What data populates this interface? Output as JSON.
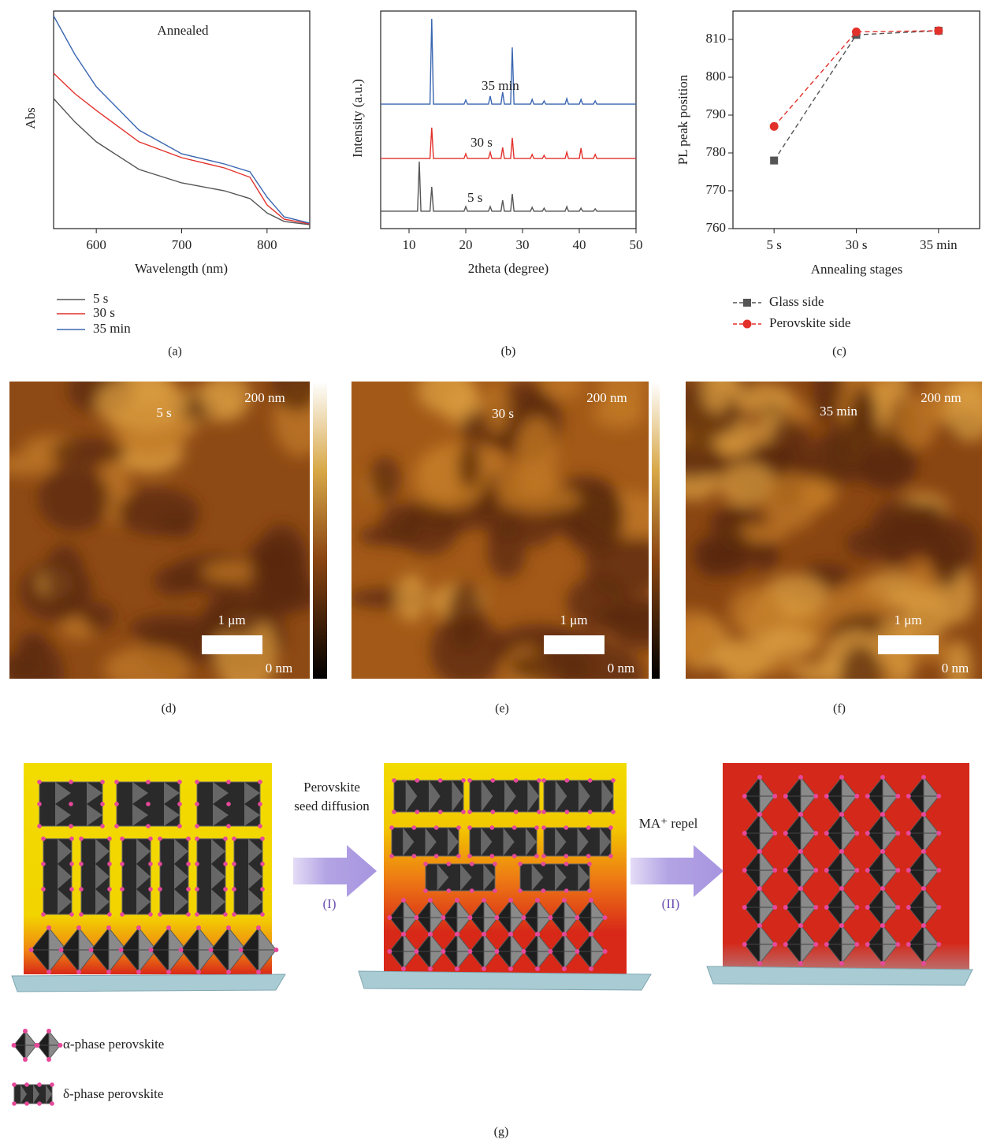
{
  "chart_data": [
    {
      "type": "line",
      "caption": "(a)",
      "annotation": "Annealed",
      "x_label": "Wavelength (nm)",
      "y_label": "Abs",
      "x": [
        550,
        575,
        600,
        650,
        700,
        750,
        780,
        800,
        820,
        850
      ],
      "xlim": [
        550,
        850
      ],
      "xticks": [
        600,
        700,
        800
      ],
      "ylim": [
        0,
        1
      ],
      "series": [
        {
          "name": "5 s",
          "color": "#555555",
          "values": [
            0.598,
            0.49,
            0.399,
            0.272,
            0.21,
            0.174,
            0.138,
            0.072,
            0.033,
            0.018
          ]
        },
        {
          "name": "30 s",
          "color": "#e2312b",
          "values": [
            0.714,
            0.62,
            0.543,
            0.399,
            0.326,
            0.279,
            0.236,
            0.109,
            0.043,
            0.022
          ]
        },
        {
          "name": "35 min",
          "color": "#3a66b0",
          "values": [
            0.978,
            0.8,
            0.652,
            0.453,
            0.344,
            0.297,
            0.261,
            0.145,
            0.054,
            0.025
          ]
        }
      ]
    },
    {
      "type": "line",
      "caption": "(b)",
      "x_label": "2theta (degree)",
      "y_label": "Intensity (a.u.)",
      "x": [
        5,
        11.5,
        11.8,
        12.1,
        13.7,
        14.0,
        14.3,
        19.7,
        20.0,
        20.3,
        24.0,
        24.3,
        24.6,
        26.2,
        26.5,
        26.8,
        27.9,
        28.2,
        28.5,
        31.4,
        31.7,
        32.0,
        33.5,
        33.8,
        34.1,
        37.5,
        37.8,
        38.1,
        40.0,
        40.3,
        40.6,
        42.5,
        42.8,
        43.1,
        50
      ],
      "xlim": [
        5,
        50
      ],
      "xticks": [
        10,
        20,
        30,
        40,
        50
      ],
      "ylim": [
        0,
        1
      ],
      "series": [
        {
          "name": "5 s",
          "color": "#555555",
          "values": [
            0.08,
            0.08,
            0.308,
            0.08,
            0.08,
            0.192,
            0.08,
            0.08,
            0.101,
            0.08,
            0.08,
            0.101,
            0.08,
            0.08,
            0.13,
            0.08,
            0.08,
            0.159,
            0.08,
            0.08,
            0.098,
            0.08,
            0.08,
            0.094,
            0.08,
            0.08,
            0.101,
            0.08,
            0.08,
            0.094,
            0.08,
            0.08,
            0.091,
            0.08,
            0.08
          ]
        },
        {
          "name": "30 s",
          "color": "#e2312b",
          "values": [
            0.322,
            0.322,
            0.322,
            0.322,
            0.322,
            0.464,
            0.322,
            0.322,
            0.344,
            0.322,
            0.322,
            0.351,
            0.322,
            0.322,
            0.373,
            0.322,
            0.322,
            0.417,
            0.322,
            0.322,
            0.341,
            0.322,
            0.322,
            0.337,
            0.322,
            0.322,
            0.351,
            0.322,
            0.322,
            0.37,
            0.322,
            0.322,
            0.341,
            0.322,
            0.322
          ]
        },
        {
          "name": "35 min",
          "color": "#3a66b0",
          "values": [
            0.572,
            0.572,
            0.572,
            0.572,
            0.572,
            0.964,
            0.572,
            0.572,
            0.591,
            0.572,
            0.572,
            0.609,
            0.572,
            0.572,
            0.627,
            0.572,
            0.572,
            0.833,
            0.572,
            0.572,
            0.594,
            0.572,
            0.572,
            0.587,
            0.572,
            0.572,
            0.598,
            0.572,
            0.572,
            0.594,
            0.572,
            0.572,
            0.587,
            0.572,
            0.572
          ]
        }
      ]
    },
    {
      "type": "line",
      "caption": "(c)",
      "x_label": "Annealing stages",
      "y_label": "PL peak position",
      "categories": [
        "5 s",
        "30 s",
        "35 min"
      ],
      "ylim": [
        760,
        817.5
      ],
      "yticks": [
        760,
        770,
        780,
        790,
        800,
        810
      ],
      "linestyle": "dashed",
      "series": [
        {
          "name": "Glass side",
          "color": "#555555",
          "marker": "square",
          "values": [
            778,
            811.2,
            812.3
          ]
        },
        {
          "name": "Perovskite side",
          "color": "#e2312b",
          "marker": "circle",
          "values": [
            787,
            812,
            812.3
          ]
        }
      ]
    }
  ],
  "afm": [
    {
      "time": "5 s",
      "top": "200 nm",
      "scale": "1 μm",
      "bottom": "0 nm",
      "caption": "(d)"
    },
    {
      "time": "30 s",
      "top": "200 nm",
      "scale": "1 μm",
      "bottom": "0 nm",
      "caption": "(e)"
    },
    {
      "time": "35 min",
      "top": "200 nm",
      "scale": "1 μm",
      "bottom": "0 nm",
      "caption": "(f)"
    }
  ],
  "scheme": {
    "arrow1_top": "Perovskite",
    "arrow1_bottom": "seed diffusion",
    "arrow1_step": "(I)",
    "arrow2_top": "MA⁺ repel",
    "arrow2_step": "(II)",
    "legend_alpha": "α-phase perovskite",
    "legend_delta": "δ-phase perovskite",
    "caption": "(g)"
  }
}
